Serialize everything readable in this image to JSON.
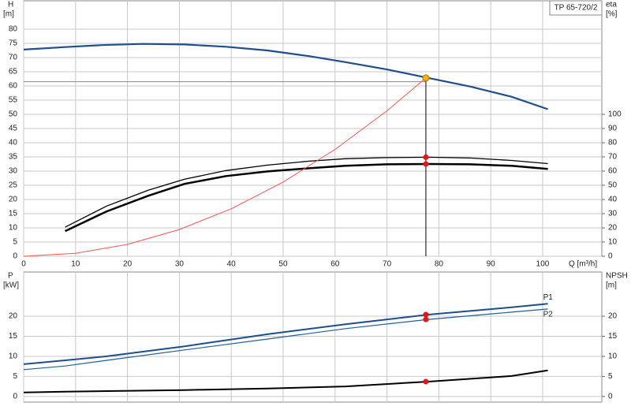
{
  "chart_data": [
    {
      "type": "line",
      "legend_text": "TP 65-720/2",
      "ylabel": "H",
      "yunit": "[m]",
      "y2label": "eta",
      "y2unit": "[%]",
      "xlabel": "Q [m³/h]",
      "xlim": [
        0,
        111.4
      ],
      "xticks": [
        0,
        10,
        20,
        30,
        40,
        50,
        60,
        70,
        80,
        90,
        100
      ],
      "ylim": [
        0,
        90
      ],
      "yticks": [
        0,
        5,
        10,
        15,
        20,
        25,
        30,
        35,
        40,
        45,
        50,
        55,
        60,
        65,
        70,
        75,
        80
      ],
      "y2lim": [
        0,
        180
      ],
      "y2ticks": [
        0,
        10,
        20,
        30,
        40,
        50,
        60,
        70,
        80,
        90,
        100
      ],
      "grid": true,
      "duty_x": 77.5,
      "duty_y": 62.8,
      "duty_color": "#f5b400",
      "hline": 61.5,
      "series": [
        {
          "color": "#1f4e8c",
          "line_width": 2.2,
          "x": [
            0,
            8,
            15,
            23,
            31,
            39,
            47,
            55,
            62,
            70,
            78,
            86,
            94,
            101
          ],
          "values": [
            72.8,
            73.7,
            74.4,
            74.8,
            74.6,
            73.8,
            72.5,
            70.5,
            68.4,
            65.8,
            62.8,
            59.8,
            56.2,
            51.8
          ]
        },
        {
          "color": "#000000",
          "line_width": 1.3,
          "axis": "y2",
          "x": [
            8,
            16,
            24,
            31,
            39,
            47,
            55,
            62,
            70,
            78,
            86,
            94,
            101
          ],
          "values": [
            20.5,
            35.4,
            46.5,
            54.3,
            60.4,
            64.2,
            67,
            68.7,
            69.5,
            69.8,
            69.2,
            67.5,
            65.3
          ],
          "duty_value": 69.8
        },
        {
          "color": "#000000",
          "line_width": 2.5,
          "axis": "y2",
          "x": [
            8,
            16,
            24,
            31,
            39,
            47,
            55,
            62,
            70,
            78,
            86,
            94,
            101
          ],
          "values": [
            17.7,
            31.6,
            42.6,
            51,
            56.5,
            59.8,
            62,
            63.7,
            64.8,
            65,
            64.8,
            63.7,
            61.5
          ],
          "duty_value": 65
        },
        {
          "color": "#ff5050",
          "line_width": 1,
          "x": [
            0,
            10,
            20,
            30,
            40,
            50,
            60,
            70,
            77.5
          ],
          "values": [
            0,
            1.05,
            4.18,
            9.41,
            16.73,
            26.14,
            37.64,
            51.23,
            62.8
          ]
        }
      ]
    },
    {
      "type": "line",
      "ylabel": "P",
      "yunit": "[kW]",
      "y2label": "NPSH",
      "y2unit": "[m]",
      "xlim": [
        0,
        111.4
      ],
      "ylim": [
        -1.4,
        31
      ],
      "yticks": [
        0,
        5,
        10,
        15,
        20
      ],
      "y2lim": [
        -1.4,
        31
      ],
      "y2ticks": [
        0,
        5,
        10,
        15,
        20
      ],
      "grid": true,
      "duty_x": 77.5,
      "series": [
        {
          "name": "P1",
          "color": "#1f4e8c",
          "line_width": 2,
          "x": [
            0,
            8,
            16,
            31,
            47,
            62,
            78,
            94,
            101
          ],
          "values": [
            8.04,
            9,
            10,
            12.5,
            15.5,
            18,
            20.4,
            22.2,
            23.1
          ],
          "duty_value": 20.4
        },
        {
          "name": "P2",
          "color": "#1f5e9c",
          "line_width": 1.2,
          "x": [
            0,
            8,
            16,
            31,
            47,
            62,
            78,
            94,
            101
          ],
          "values": [
            6.7,
            7.6,
            9,
            11.6,
            14.3,
            16.9,
            19.2,
            21,
            21.8
          ],
          "duty_value": 19.2
        },
        {
          "color": "#000000",
          "line_width": 2,
          "axis": "y2",
          "x": [
            0,
            8,
            31,
            47,
            62,
            78,
            94,
            101
          ],
          "values": [
            1,
            1.2,
            1.6,
            2,
            2.5,
            3.7,
            5.1,
            6.5
          ],
          "duty_value": 3.7
        }
      ]
    }
  ]
}
